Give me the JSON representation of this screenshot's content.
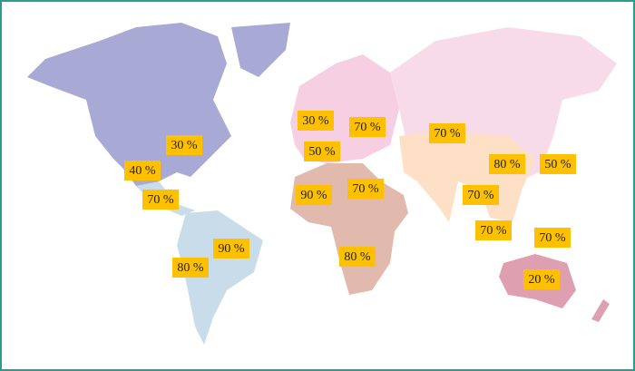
{
  "labels": [
    "30 %",
    "70 %",
    "70 %",
    "30 %",
    "50 %",
    "40 %",
    "80 %",
    "50 %",
    "90 %",
    "70 %",
    "70 %",
    "70 %",
    "90 %",
    "70 %",
    "70 %",
    "80 %",
    "80 %",
    "20 %"
  ]
}
